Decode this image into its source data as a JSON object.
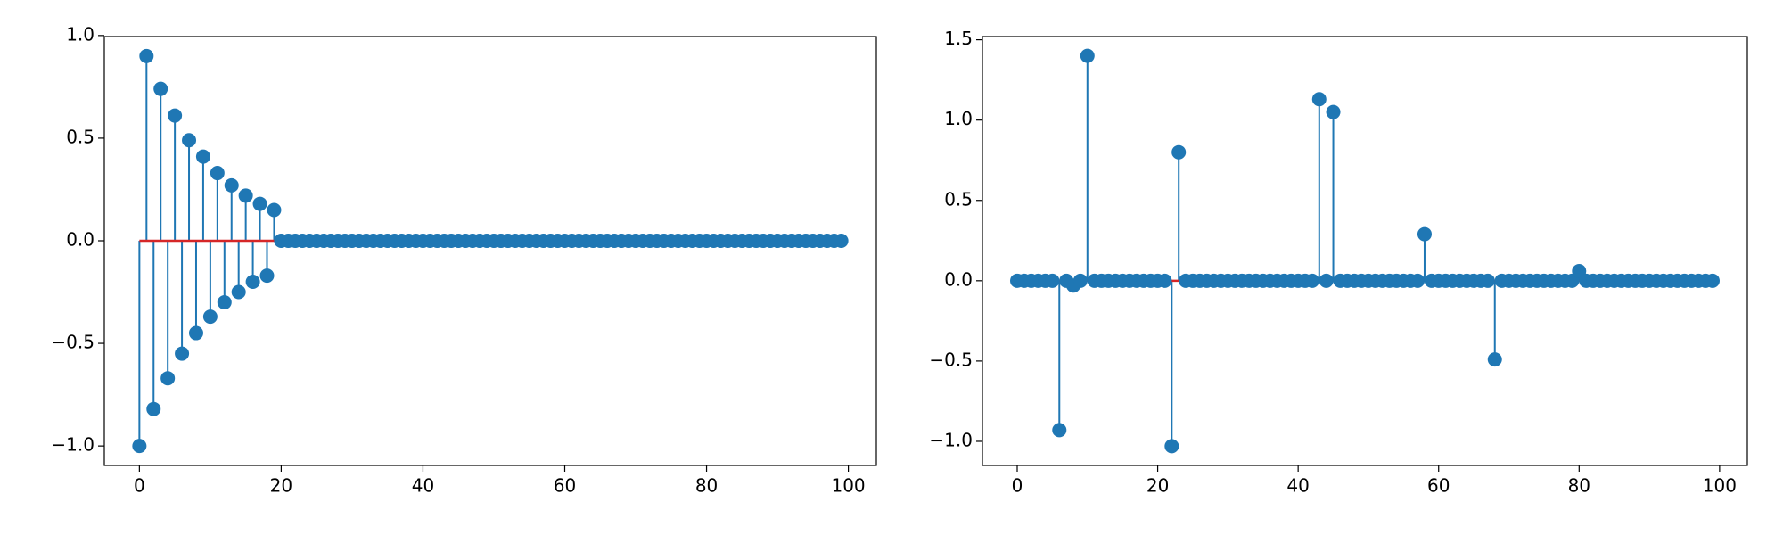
{
  "chart_data": [
    {
      "type": "stem",
      "color": "#1f77b4",
      "baseline_color": "#d62728",
      "x": [
        0,
        1,
        2,
        3,
        4,
        5,
        6,
        7,
        8,
        9,
        10,
        11,
        12,
        13,
        14,
        15,
        16,
        17,
        18,
        19,
        20,
        21,
        22,
        23,
        24,
        25,
        26,
        27,
        28,
        29,
        30,
        31,
        32,
        33,
        34,
        35,
        36,
        37,
        38,
        39,
        40,
        41,
        42,
        43,
        44,
        45,
        46,
        47,
        48,
        49,
        50,
        51,
        52,
        53,
        54,
        55,
        56,
        57,
        58,
        59,
        60,
        61,
        62,
        63,
        64,
        65,
        66,
        67,
        68,
        69,
        70,
        71,
        72,
        73,
        74,
        75,
        76,
        77,
        78,
        79,
        80,
        81,
        82,
        83,
        84,
        85,
        86,
        87,
        88,
        89,
        90,
        91,
        92,
        93,
        94,
        95,
        96,
        97,
        98,
        99
      ],
      "values": [
        -1.0,
        0.9,
        -0.82,
        0.74,
        -0.67,
        0.61,
        -0.55,
        0.49,
        -0.45,
        0.41,
        -0.37,
        0.33,
        -0.3,
        0.27,
        -0.25,
        0.22,
        -0.2,
        0.18,
        -0.17,
        0.15,
        0,
        0,
        0,
        0,
        0,
        0,
        0,
        0,
        0,
        0,
        0,
        0,
        0,
        0,
        0,
        0,
        0,
        0,
        0,
        0,
        0,
        0,
        0,
        0,
        0,
        0,
        0,
        0,
        0,
        0,
        0,
        0,
        0,
        0,
        0,
        0,
        0,
        0,
        0,
        0,
        0,
        0,
        0,
        0,
        0,
        0,
        0,
        0,
        0,
        0,
        0,
        0,
        0,
        0,
        0,
        0,
        0,
        0,
        0,
        0,
        0,
        0,
        0,
        0,
        0,
        0,
        0,
        0,
        0,
        0,
        0,
        0,
        0,
        0,
        0,
        0,
        0,
        0,
        0,
        0
      ],
      "xlim": [
        -4.95,
        103.95
      ],
      "xticks": [
        0,
        20,
        40,
        60,
        80,
        100
      ],
      "ylim": [
        -1.095,
        0.995
      ],
      "yticks": [
        {
          "value": -1.0,
          "label": "−1.0"
        },
        {
          "value": -0.5,
          "label": "−0.5"
        },
        {
          "value": 0.0,
          "label": "0.0"
        },
        {
          "value": 0.5,
          "label": "0.5"
        },
        {
          "value": 1.0,
          "label": "1.0"
        }
      ]
    },
    {
      "type": "stem",
      "color": "#1f77b4",
      "baseline_color": "#d62728",
      "x": [
        0,
        1,
        2,
        3,
        4,
        5,
        6,
        7,
        8,
        9,
        10,
        11,
        12,
        13,
        14,
        15,
        16,
        17,
        18,
        19,
        20,
        21,
        22,
        23,
        24,
        25,
        26,
        27,
        28,
        29,
        30,
        31,
        32,
        33,
        34,
        35,
        36,
        37,
        38,
        39,
        40,
        41,
        42,
        43,
        44,
        45,
        46,
        47,
        48,
        49,
        50,
        51,
        52,
        53,
        54,
        55,
        56,
        57,
        58,
        59,
        60,
        61,
        62,
        63,
        64,
        65,
        66,
        67,
        68,
        69,
        70,
        71,
        72,
        73,
        74,
        75,
        76,
        77,
        78,
        79,
        80,
        81,
        82,
        83,
        84,
        85,
        86,
        87,
        88,
        89,
        90,
        91,
        92,
        93,
        94,
        95,
        96,
        97,
        98,
        99
      ],
      "values": [
        0,
        0,
        0,
        0,
        0,
        0,
        -0.93,
        0,
        -0.03,
        0,
        1.4,
        0,
        0,
        0,
        0,
        0,
        0,
        0,
        0,
        0,
        0,
        0,
        -1.03,
        0.8,
        0,
        0,
        0,
        0,
        0,
        0,
        0,
        0,
        0,
        0,
        0,
        0,
        0,
        0,
        0,
        0,
        0,
        0,
        0,
        1.13,
        0,
        1.05,
        0,
        0,
        0,
        0,
        0,
        0,
        0,
        0,
        0,
        0,
        0,
        0,
        0.29,
        0,
        0,
        0,
        0,
        0,
        0,
        0,
        0,
        0,
        -0.49,
        0,
        0,
        0,
        0,
        0,
        0,
        0,
        0,
        0,
        0,
        0,
        0.06,
        0,
        0,
        0,
        0,
        0,
        0,
        0,
        0,
        0,
        0,
        0,
        0,
        0,
        0,
        0,
        0,
        0,
        0,
        0
      ],
      "xlim": [
        -4.95,
        103.95
      ],
      "xticks": [
        0,
        20,
        40,
        60,
        80,
        100
      ],
      "ylim": [
        -1.15,
        1.52
      ],
      "yticks": [
        {
          "value": -1.0,
          "label": "−1.0"
        },
        {
          "value": -0.5,
          "label": "−0.5"
        },
        {
          "value": 0.0,
          "label": "0.0"
        },
        {
          "value": 0.5,
          "label": "0.5"
        },
        {
          "value": 1.0,
          "label": "1.0"
        },
        {
          "value": 1.5,
          "label": "1.5"
        }
      ]
    }
  ]
}
